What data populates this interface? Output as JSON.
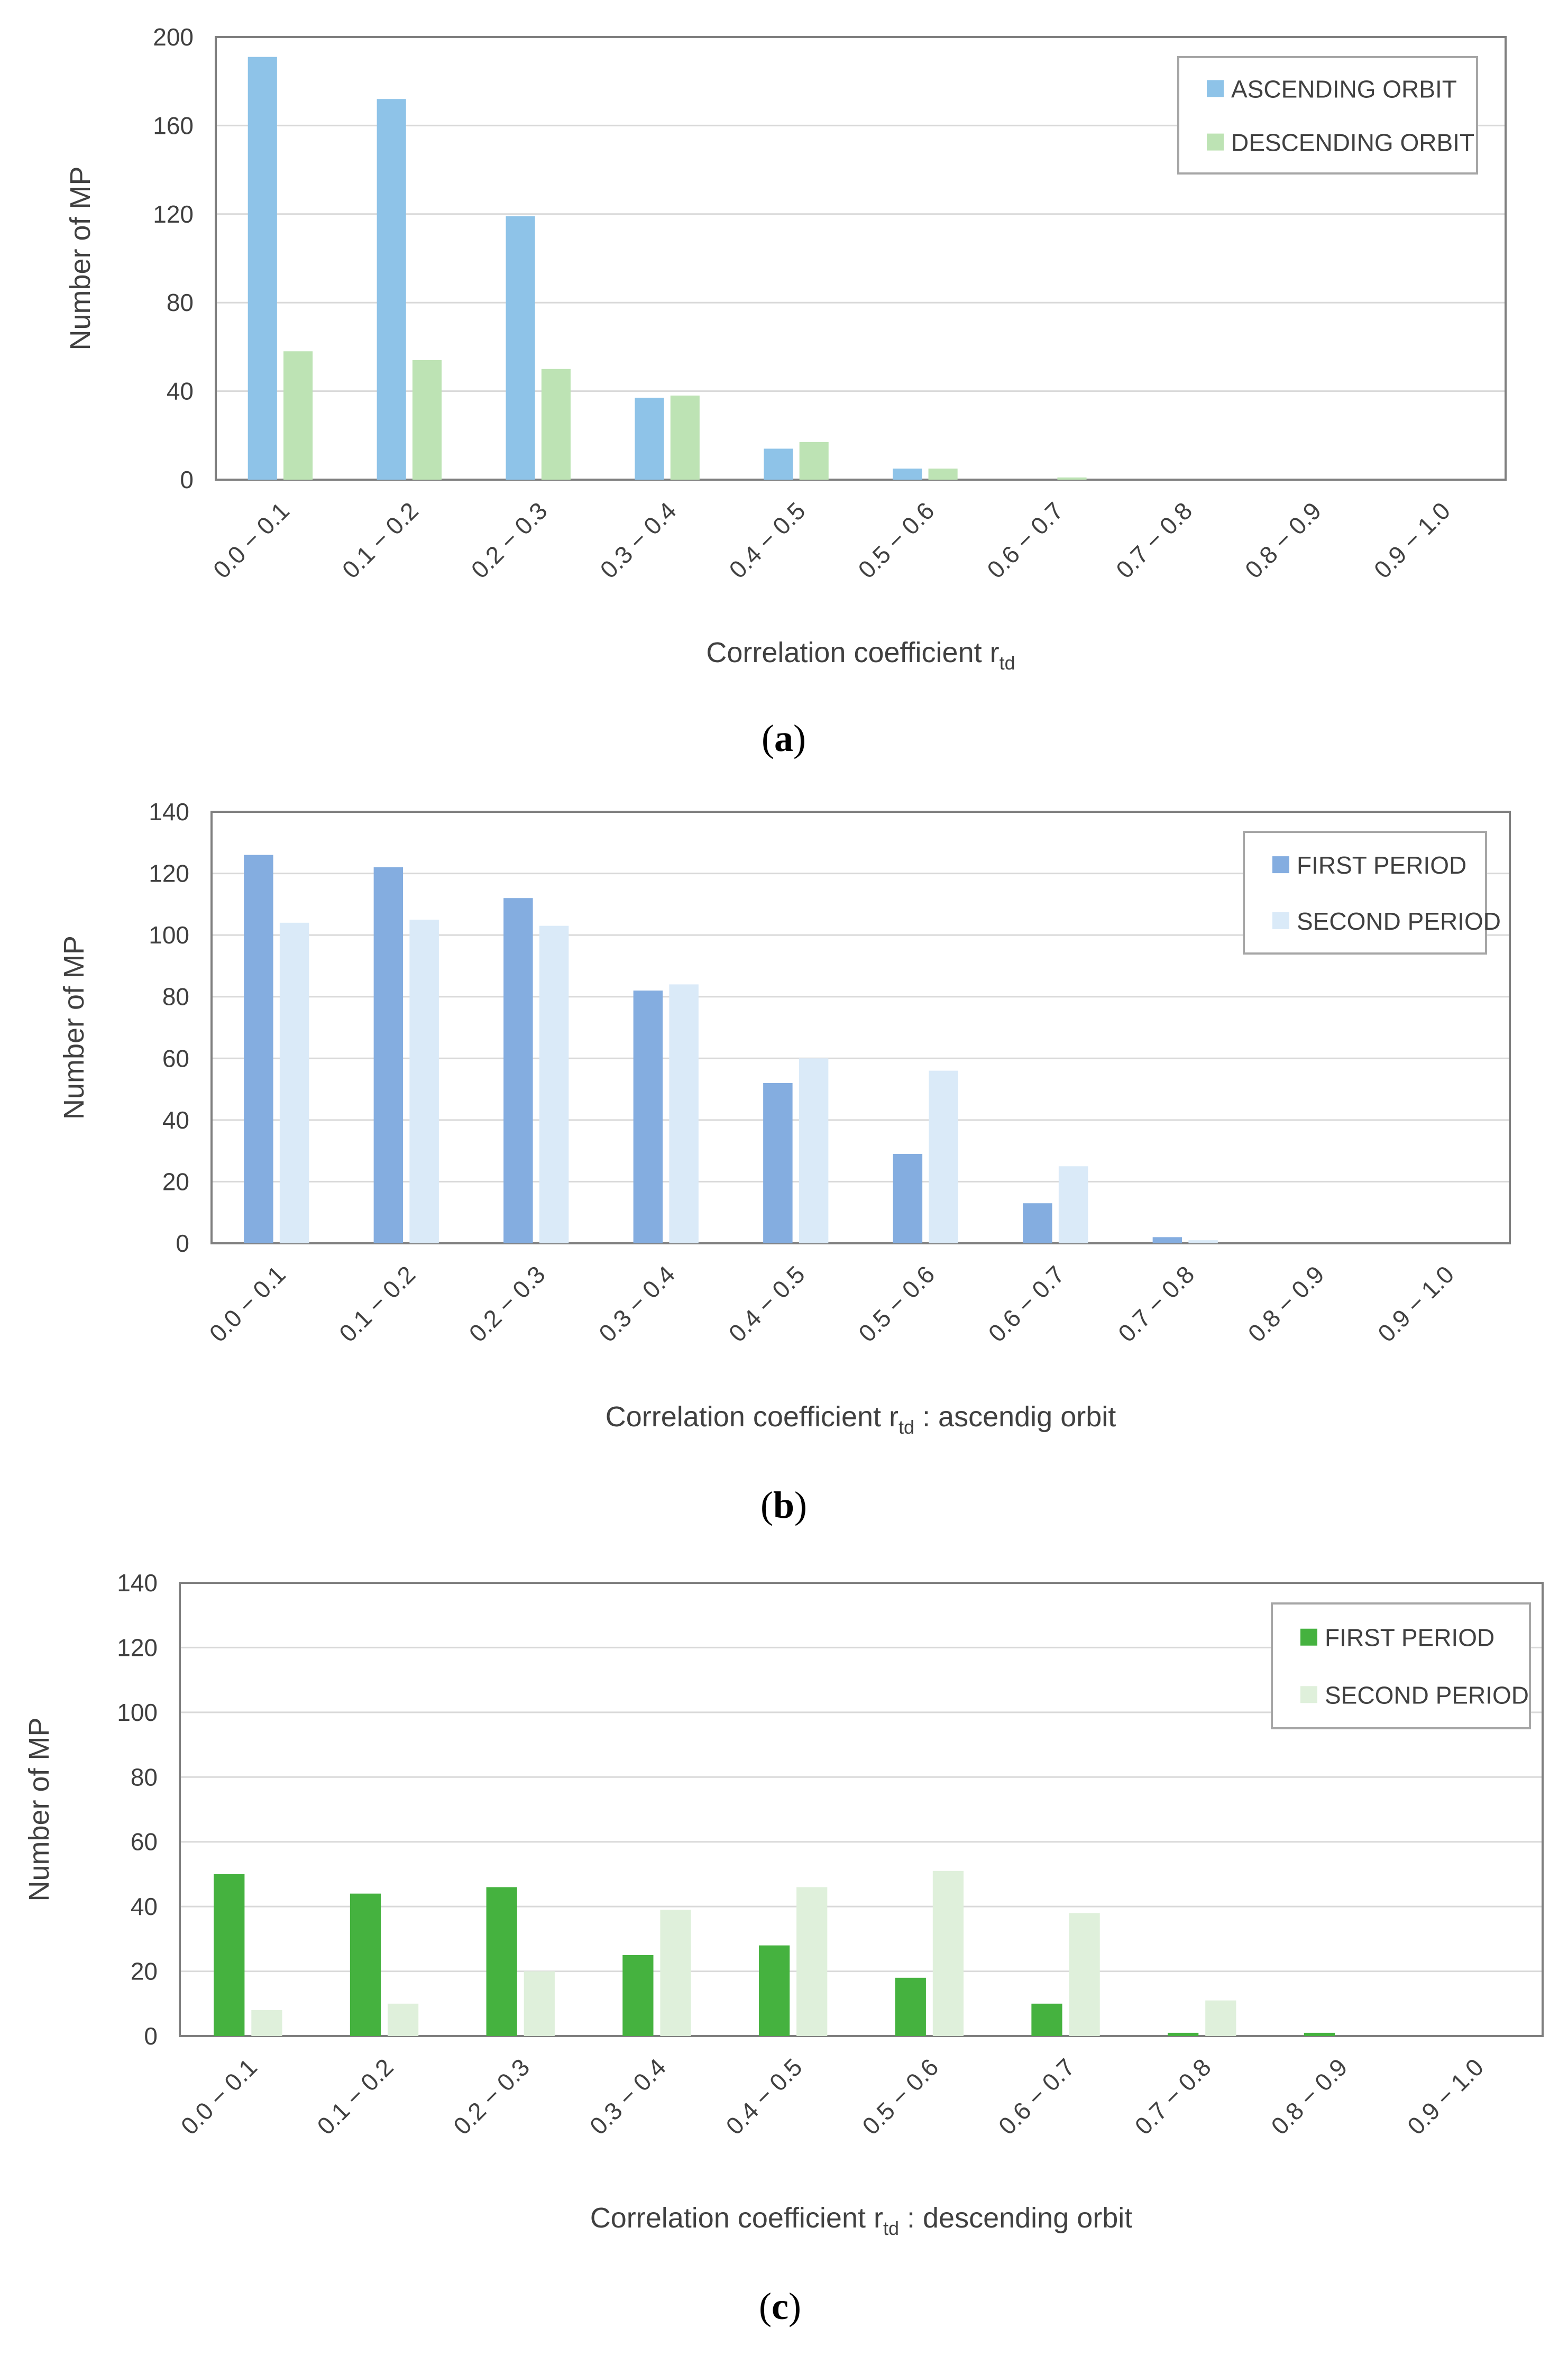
{
  "chart_data": [
    {
      "type": "bar",
      "panel": "(a)",
      "title": "",
      "xlabel": "Correlation coefficient r",
      "xlabel_sub": "td",
      "xlabel_suffix": "",
      "ylabel": "Number of MP",
      "ylim": [
        0,
        200
      ],
      "yticks": [
        0,
        40,
        80,
        120,
        160,
        200
      ],
      "grid": true,
      "legend_position": "top-right",
      "categories": [
        "0.0 − 0.1",
        "0.1 − 0.2",
        "0.2 − 0.3",
        "0.3 − 0.4",
        "0.4 − 0.5",
        "0.5 − 0.6",
        "0.6 − 0.7",
        "0.7 − 0.8",
        "0.8 − 0.9",
        "0.9 − 1.0"
      ],
      "series": [
        {
          "name": "ASCENDING ORBIT",
          "color": "#8ec3e8",
          "values": [
            191,
            172,
            119,
            37,
            14,
            5,
            0,
            0,
            0,
            0
          ]
        },
        {
          "name": "DESCENDING ORBIT",
          "color": "#bde3b4",
          "values": [
            58,
            54,
            50,
            38,
            17,
            5,
            1,
            0,
            0,
            0
          ]
        }
      ]
    },
    {
      "type": "bar",
      "panel": "(b)",
      "title": "",
      "xlabel": "Correlation coefficient r",
      "xlabel_sub": "td",
      "xlabel_suffix": " : ascendig orbit",
      "ylabel": "Number of MP",
      "ylim": [
        0,
        140
      ],
      "yticks": [
        0,
        20,
        40,
        60,
        80,
        100,
        120,
        140
      ],
      "grid": true,
      "legend_position": "top-right",
      "categories": [
        "0.0 − 0.1",
        "0.1 − 0.2",
        "0.2 − 0.3",
        "0.3 − 0.4",
        "0.4 − 0.5",
        "0.5 − 0.6",
        "0.6 − 0.7",
        "0.7 − 0.8",
        "0.8 − 0.9",
        "0.9 − 1.0"
      ],
      "series": [
        {
          "name": "FIRST PERIOD",
          "color": "#84ade0",
          "values": [
            126,
            122,
            112,
            82,
            52,
            29,
            13,
            2,
            0,
            0
          ]
        },
        {
          "name": "SECOND PERIOD",
          "color": "#daeaf8",
          "values": [
            104,
            105,
            103,
            84,
            60,
            56,
            25,
            1,
            0,
            0
          ]
        }
      ]
    },
    {
      "type": "bar",
      "panel": "(c)",
      "title": "",
      "xlabel": "Correlation coefficient r",
      "xlabel_sub": "td",
      "xlabel_suffix": " : descending orbit",
      "ylabel": "Number of MP",
      "ylim": [
        0,
        140
      ],
      "yticks": [
        0,
        20,
        40,
        60,
        80,
        100,
        120,
        140
      ],
      "grid": true,
      "legend_position": "top-right",
      "categories": [
        "0.0 − 0.1",
        "0.1 − 0.2",
        "0.2 − 0.3",
        "0.3 − 0.4",
        "0.4 − 0.5",
        "0.5 − 0.6",
        "0.6 − 0.7",
        "0.7 − 0.8",
        "0.8 − 0.9",
        "0.9 − 1.0"
      ],
      "series": [
        {
          "name": "FIRST PERIOD",
          "color": "#45b23f",
          "values": [
            50,
            44,
            46,
            25,
            28,
            18,
            10,
            1,
            1,
            0
          ]
        },
        {
          "name": "SECOND PERIOD",
          "color": "#dff0db",
          "values": [
            8,
            10,
            20,
            39,
            46,
            51,
            38,
            11,
            0,
            0
          ]
        }
      ]
    }
  ]
}
